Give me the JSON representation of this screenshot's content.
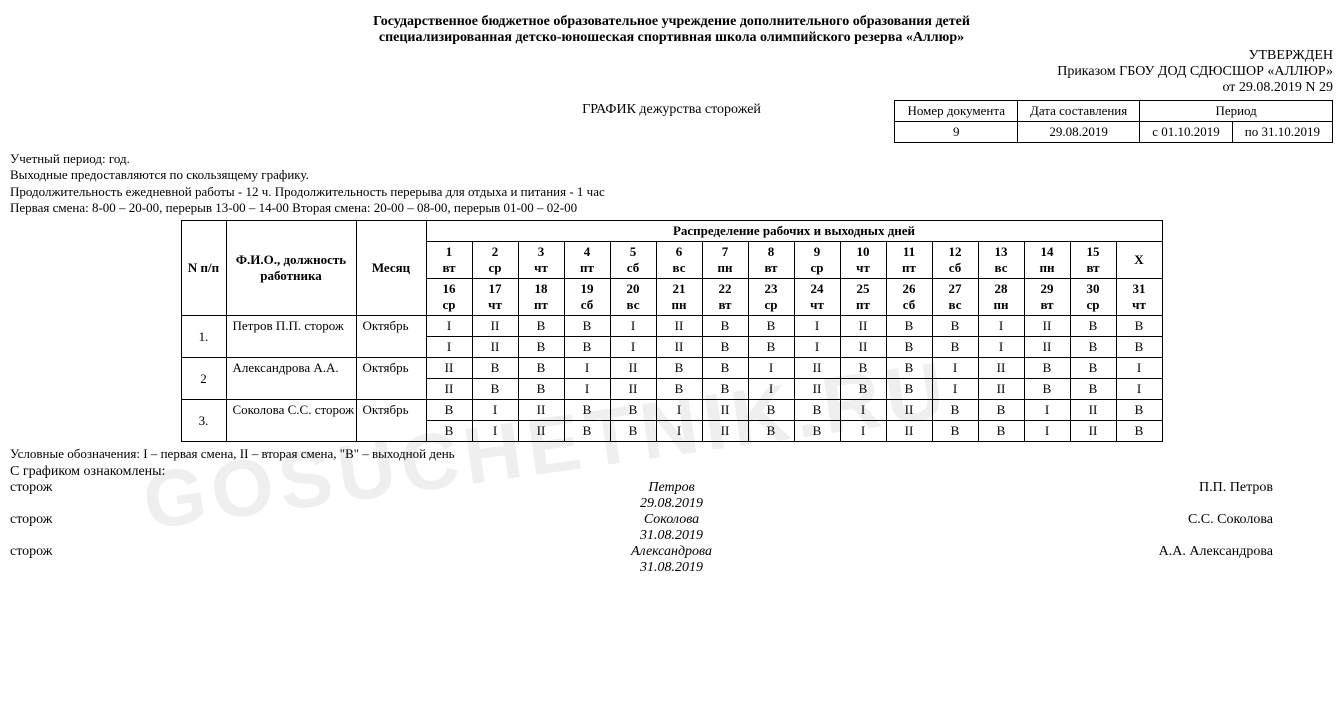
{
  "watermark": "GOSUCHETNIK.RU",
  "header": {
    "line1": "Государственное бюджетное образовательное учреждение дополнительного образования детей",
    "line2": "специализированная детско-юношеская спортивная школа олимпийского резерва «Аллюр»"
  },
  "approval": {
    "line1": "УТВЕРЖДЕН",
    "line2": "Приказом ГБОУ ДОД СДЮСШОР «АЛЛЮР»",
    "line3": "от 29.08.2019 N 29"
  },
  "docTitle": "ГРАФИК дежурства сторожей",
  "meta": {
    "h1": "Номер документа",
    "h2": "Дата составления",
    "h3": "Период",
    "docNum": "9",
    "date": "29.08.2019",
    "periodFrom": "с 01.10.2019",
    "periodTo": "по 31.10.2019"
  },
  "notes": {
    "n1": "Учетный период: год.",
    "n2": "Выходные предоставляются по скользящему графику.",
    "n3": "Продолжительность ежедневной работы - 12 ч. Продолжительность перерыва для отдыха и питания - 1 час",
    "n4": "Первая смена: 8-00 – 20-00, перерыв 13-00 – 14-00 Вторая смена: 20-00 – 08-00, перерыв 01-00 – 02-00"
  },
  "schedHeaders": {
    "seq": "N п/п",
    "fio": "Ф.И.О., должность работника",
    "month": "Месяц",
    "distrib": "Распределение рабочих и выходных дней"
  },
  "days": {
    "row1": [
      {
        "n": "1",
        "d": "вт"
      },
      {
        "n": "2",
        "d": "ср"
      },
      {
        "n": "3",
        "d": "чт"
      },
      {
        "n": "4",
        "d": "пт"
      },
      {
        "n": "5",
        "d": "сб"
      },
      {
        "n": "6",
        "d": "вс"
      },
      {
        "n": "7",
        "d": "пн"
      },
      {
        "n": "8",
        "d": "вт"
      },
      {
        "n": "9",
        "d": "ср"
      },
      {
        "n": "10",
        "d": "чт"
      },
      {
        "n": "11",
        "d": "пт"
      },
      {
        "n": "12",
        "d": "сб"
      },
      {
        "n": "13",
        "d": "вс"
      },
      {
        "n": "14",
        "d": "пн"
      },
      {
        "n": "15",
        "d": "вт"
      },
      {
        "n": "X",
        "d": ""
      }
    ],
    "row2": [
      {
        "n": "16",
        "d": "ср"
      },
      {
        "n": "17",
        "d": "чт"
      },
      {
        "n": "18",
        "d": "пт"
      },
      {
        "n": "19",
        "d": "сб"
      },
      {
        "n": "20",
        "d": "вс"
      },
      {
        "n": "21",
        "d": "пн"
      },
      {
        "n": "22",
        "d": "вт"
      },
      {
        "n": "23",
        "d": "ср"
      },
      {
        "n": "24",
        "d": "чт"
      },
      {
        "n": "25",
        "d": "пт"
      },
      {
        "n": "26",
        "d": "сб"
      },
      {
        "n": "27",
        "d": "вс"
      },
      {
        "n": "28",
        "d": "пн"
      },
      {
        "n": "29",
        "d": "вт"
      },
      {
        "n": "30",
        "d": "ср"
      },
      {
        "n": "31",
        "d": "чт"
      }
    ]
  },
  "employees": [
    {
      "seq": "1.",
      "name": "Петров П.П. сторож",
      "month": "Октябрь",
      "r1": [
        "I",
        "II",
        "В",
        "В",
        "I",
        "II",
        "В",
        "В",
        "I",
        "II",
        "В",
        "В",
        "I",
        "II",
        "В",
        "В"
      ],
      "r2": [
        "I",
        "II",
        "В",
        "В",
        "I",
        "II",
        "В",
        "В",
        "I",
        "II",
        "В",
        "В",
        "I",
        "II",
        "В",
        "В"
      ]
    },
    {
      "seq": "2",
      "name": "Александрова А.А.",
      "month": "Октябрь",
      "r1": [
        "II",
        "В",
        "В",
        "I",
        "II",
        "В",
        "В",
        "I",
        "II",
        "В",
        "В",
        "I",
        "II",
        "В",
        "В",
        "I"
      ],
      "r2": [
        "II",
        "В",
        "В",
        "I",
        "II",
        "В",
        "В",
        "I",
        "II",
        "В",
        "В",
        "I",
        "II",
        "В",
        "В",
        "I"
      ]
    },
    {
      "seq": "3.",
      "name": "Соколова С.С. сторож",
      "month": "Октябрь",
      "r1": [
        "В",
        "I",
        "II",
        "В",
        "В",
        "I",
        "II",
        "В",
        "В",
        "I",
        "II",
        "В",
        "В",
        "I",
        "II",
        "В"
      ],
      "r2": [
        "В",
        "I",
        "II",
        "В",
        "В",
        "I",
        "II",
        "В",
        "В",
        "I",
        "II",
        "В",
        "В",
        "I",
        "II",
        "В"
      ]
    }
  ],
  "legend": "Условные обозначения: I – первая смена, II – вторая смена, \"В\" – выходной день",
  "acq": "С графиком ознакомлены:",
  "signs": [
    {
      "role": "сторож",
      "mid1": "Петров",
      "mid2": "29.08.2019",
      "name": "П.П. Петров"
    },
    {
      "role": "сторож",
      "mid1": "Соколова",
      "mid2": "31.08.2019",
      "name": "С.С. Соколова"
    },
    {
      "role": "сторож",
      "mid1": "Александрова",
      "mid2": "31.08.2019",
      "name": "А.А. Александрова"
    }
  ]
}
